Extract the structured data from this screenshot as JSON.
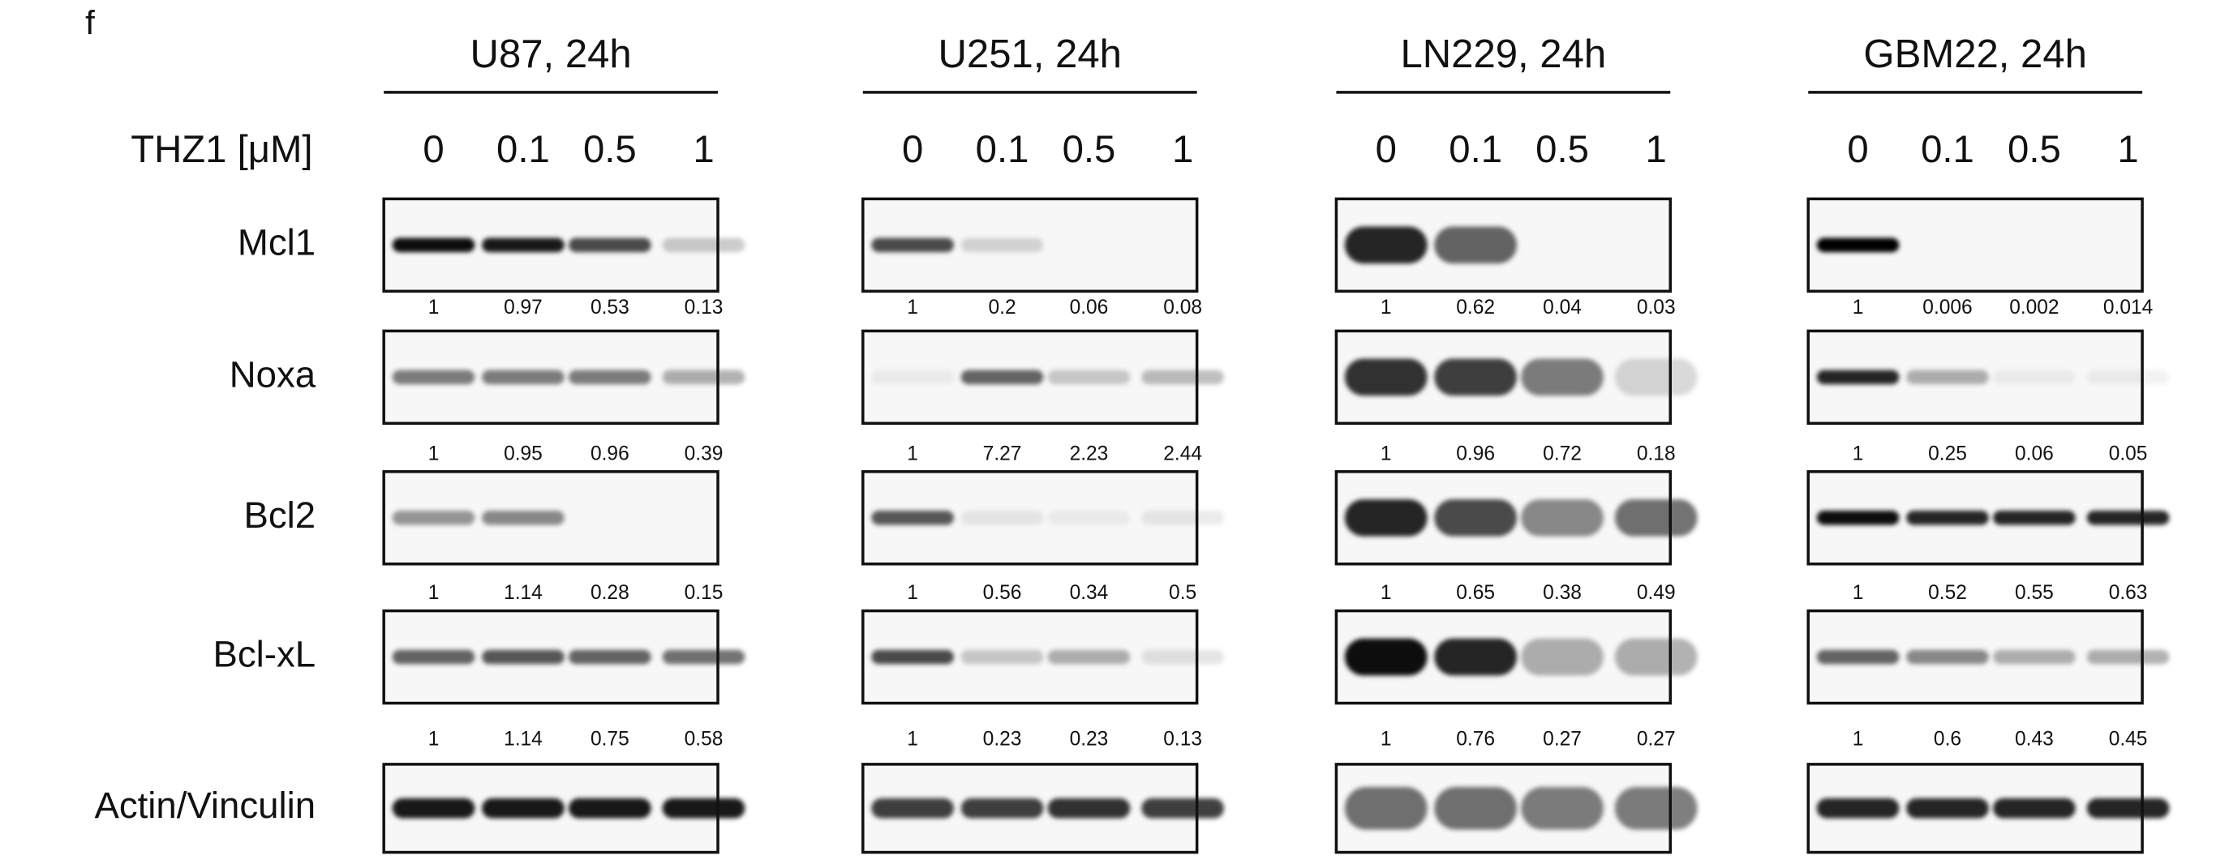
{
  "panel_label": "f",
  "treatment_label": "THZ1 [μM]",
  "proteins": [
    "Mcl1",
    "Noxa",
    "Bcl2",
    "Bcl-xL",
    "Actin/Vinculin"
  ],
  "panels": [
    {
      "title": "U87, 24h",
      "doses": [
        "0",
        "0.1",
        "0.5",
        "1"
      ],
      "quantification": [
        [
          "1",
          "0.97",
          "0.53",
          "0.13"
        ],
        [
          "1",
          "0.95",
          "0.96",
          "0.39"
        ],
        [
          "1",
          "1.14",
          "0.28",
          "0.15"
        ],
        [
          "1",
          "1.14",
          "0.75",
          "0.58"
        ]
      ]
    },
    {
      "title": "U251, 24h",
      "doses": [
        "0",
        "0.1",
        "0.5",
        "1"
      ],
      "quantification": [
        [
          "1",
          "0.2",
          "0.06",
          "0.08"
        ],
        [
          "1",
          "7.27",
          "2.23",
          "2.44"
        ],
        [
          "1",
          "0.56",
          "0.34",
          "0.5"
        ],
        [
          "1",
          "0.23",
          "0.23",
          "0.13"
        ]
      ]
    },
    {
      "title": "LN229, 24h",
      "doses": [
        "0",
        "0.1",
        "0.5",
        "1"
      ],
      "quantification": [
        [
          "1",
          "0.62",
          "0.04",
          "0.03"
        ],
        [
          "1",
          "0.96",
          "0.72",
          "0.18"
        ],
        [
          "1",
          "0.65",
          "0.38",
          "0.49"
        ],
        [
          "1",
          "0.76",
          "0.27",
          "0.27"
        ]
      ]
    },
    {
      "title": "GBM22, 24h",
      "doses": [
        "0",
        "0.1",
        "0.5",
        "1"
      ],
      "quantification": [
        [
          "1",
          "0.006",
          "0.002",
          "0.014"
        ],
        [
          "1",
          "0.25",
          "0.06",
          "0.05"
        ],
        [
          "1",
          "0.52",
          "0.55",
          "0.63"
        ],
        [
          "1",
          "0.6",
          "0.43",
          "0.45"
        ]
      ]
    }
  ]
}
